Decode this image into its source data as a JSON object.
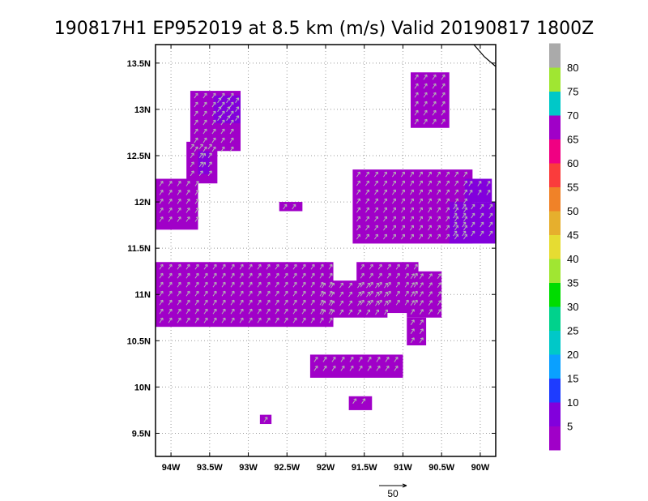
{
  "chart_data": {
    "type": "heatmap",
    "title": "190817H1 EP952019 at 8.5 km (m/s) Valid 20190817 1800Z",
    "x_range": [
      -94.2,
      -89.8
    ],
    "y_range": [
      9.25,
      13.7
    ],
    "x_ticks": [
      {
        "value": -94.0,
        "label": "94W"
      },
      {
        "value": -93.5,
        "label": "93.5W"
      },
      {
        "value": -93.0,
        "label": "93W"
      },
      {
        "value": -92.5,
        "label": "92.5W"
      },
      {
        "value": -92.0,
        "label": "92W"
      },
      {
        "value": -91.5,
        "label": "91.5W"
      },
      {
        "value": -91.0,
        "label": "91W"
      },
      {
        "value": -90.5,
        "label": "90.5W"
      },
      {
        "value": -90.0,
        "label": "90W"
      }
    ],
    "y_ticks": [
      {
        "value": 9.5,
        "label": "9.5N"
      },
      {
        "value": 10.0,
        "label": "10N"
      },
      {
        "value": 10.5,
        "label": "10.5N"
      },
      {
        "value": 11.0,
        "label": "11N"
      },
      {
        "value": 11.5,
        "label": "11.5N"
      },
      {
        "value": 12.0,
        "label": "12N"
      },
      {
        "value": 12.5,
        "label": "12.5N"
      },
      {
        "value": 13.0,
        "label": "13N"
      },
      {
        "value": 13.5,
        "label": "13.5N"
      }
    ],
    "grid": true,
    "colorbar": {
      "colors": [
        "#a000c8",
        "#8200dc",
        "#1e3cff",
        "#0aa0ff",
        "#00c8c8",
        "#00d28c",
        "#00dc00",
        "#a0e632",
        "#e6dc32",
        "#e6af2d",
        "#f08228",
        "#fa3c3c",
        "#f00082",
        "#a000c8",
        "#00c8c8",
        "#a0e632",
        "#aaaaaa"
      ],
      "labels": [
        {
          "index": 1,
          "text": "5"
        },
        {
          "index": 2,
          "text": "10"
        },
        {
          "index": 3,
          "text": "15"
        },
        {
          "index": 4,
          "text": "20"
        },
        {
          "index": 5,
          "text": "25"
        },
        {
          "index": 6,
          "text": "30"
        },
        {
          "index": 7,
          "text": "35"
        },
        {
          "index": 8,
          "text": "40"
        },
        {
          "index": 9,
          "text": "45"
        },
        {
          "index": 10,
          "text": "50"
        },
        {
          "index": 11,
          "text": "55"
        },
        {
          "index": 12,
          "text": "60"
        },
        {
          "index": 13,
          "text": "65"
        },
        {
          "index": 14,
          "text": "70"
        },
        {
          "index": 15,
          "text": "75"
        },
        {
          "index": 16,
          "text": "80"
        }
      ]
    },
    "vector_reference_label": "50",
    "regions": [
      {
        "name": "west-strip",
        "speed": 5,
        "lon": [
          -94.2,
          -91.9
        ],
        "lat": [
          10.65,
          11.35
        ]
      },
      {
        "name": "mid-strip",
        "speed": 5,
        "lon": [
          -92.1,
          -91.2
        ],
        "lat": [
          10.75,
          11.15
        ]
      },
      {
        "name": "central-block",
        "speed": 5,
        "lon": [
          -91.6,
          -90.8
        ],
        "lat": [
          10.8,
          11.35
        ]
      },
      {
        "name": "east-mid",
        "speed": 5,
        "lon": [
          -90.95,
          -90.5
        ],
        "lat": [
          10.75,
          11.25
        ]
      },
      {
        "name": "east-mid-lower",
        "speed": 5,
        "lon": [
          -90.95,
          -90.7
        ],
        "lat": [
          10.45,
          10.75
        ]
      },
      {
        "name": "east-block",
        "speed": 5,
        "lon": [
          -91.65,
          -90.1
        ],
        "lat": [
          11.55,
          12.35
        ]
      },
      {
        "name": "east-block-edge",
        "speed": 10,
        "lon": [
          -90.4,
          -89.8
        ],
        "lat": [
          11.55,
          12.0
        ]
      },
      {
        "name": "east-block-edge-upper",
        "speed": 10,
        "lon": [
          -90.2,
          -89.85
        ],
        "lat": [
          12.0,
          12.25
        ]
      },
      {
        "name": "ne-blob",
        "speed": 5,
        "lon": [
          -90.9,
          -90.4
        ],
        "lat": [
          12.8,
          13.4
        ]
      },
      {
        "name": "nw-blob",
        "speed": 5,
        "lon": [
          -93.75,
          -93.1
        ],
        "lat": [
          12.55,
          13.2
        ]
      },
      {
        "name": "nw-blob-core",
        "speed": 10,
        "lon": [
          -93.45,
          -93.1
        ],
        "lat": [
          12.85,
          13.15
        ]
      },
      {
        "name": "west-mid-blob",
        "speed": 5,
        "lon": [
          -93.8,
          -93.4
        ],
        "lat": [
          12.2,
          12.65
        ]
      },
      {
        "name": "west-mid-core",
        "speed": 10,
        "lon": [
          -93.65,
          -93.5
        ],
        "lat": [
          12.3,
          12.55
        ]
      },
      {
        "name": "far-west-blob",
        "speed": 5,
        "lon": [
          -94.2,
          -93.65
        ],
        "lat": [
          11.7,
          12.25
        ]
      },
      {
        "name": "south-band",
        "speed": 5,
        "lon": [
          -92.2,
          -91.0
        ],
        "lat": [
          10.1,
          10.35
        ]
      },
      {
        "name": "south-band-small",
        "speed": 5,
        "lon": [
          -91.7,
          -91.4
        ],
        "lat": [
          9.75,
          9.9
        ]
      },
      {
        "name": "sw-speck",
        "speed": 5,
        "lon": [
          -92.85,
          -92.7
        ],
        "lat": [
          9.6,
          9.7
        ]
      },
      {
        "name": "mid-speck",
        "speed": 5,
        "lon": [
          -92.6,
          -92.3
        ],
        "lat": [
          11.9,
          12.0
        ]
      }
    ],
    "xlabel": "",
    "ylabel": ""
  }
}
